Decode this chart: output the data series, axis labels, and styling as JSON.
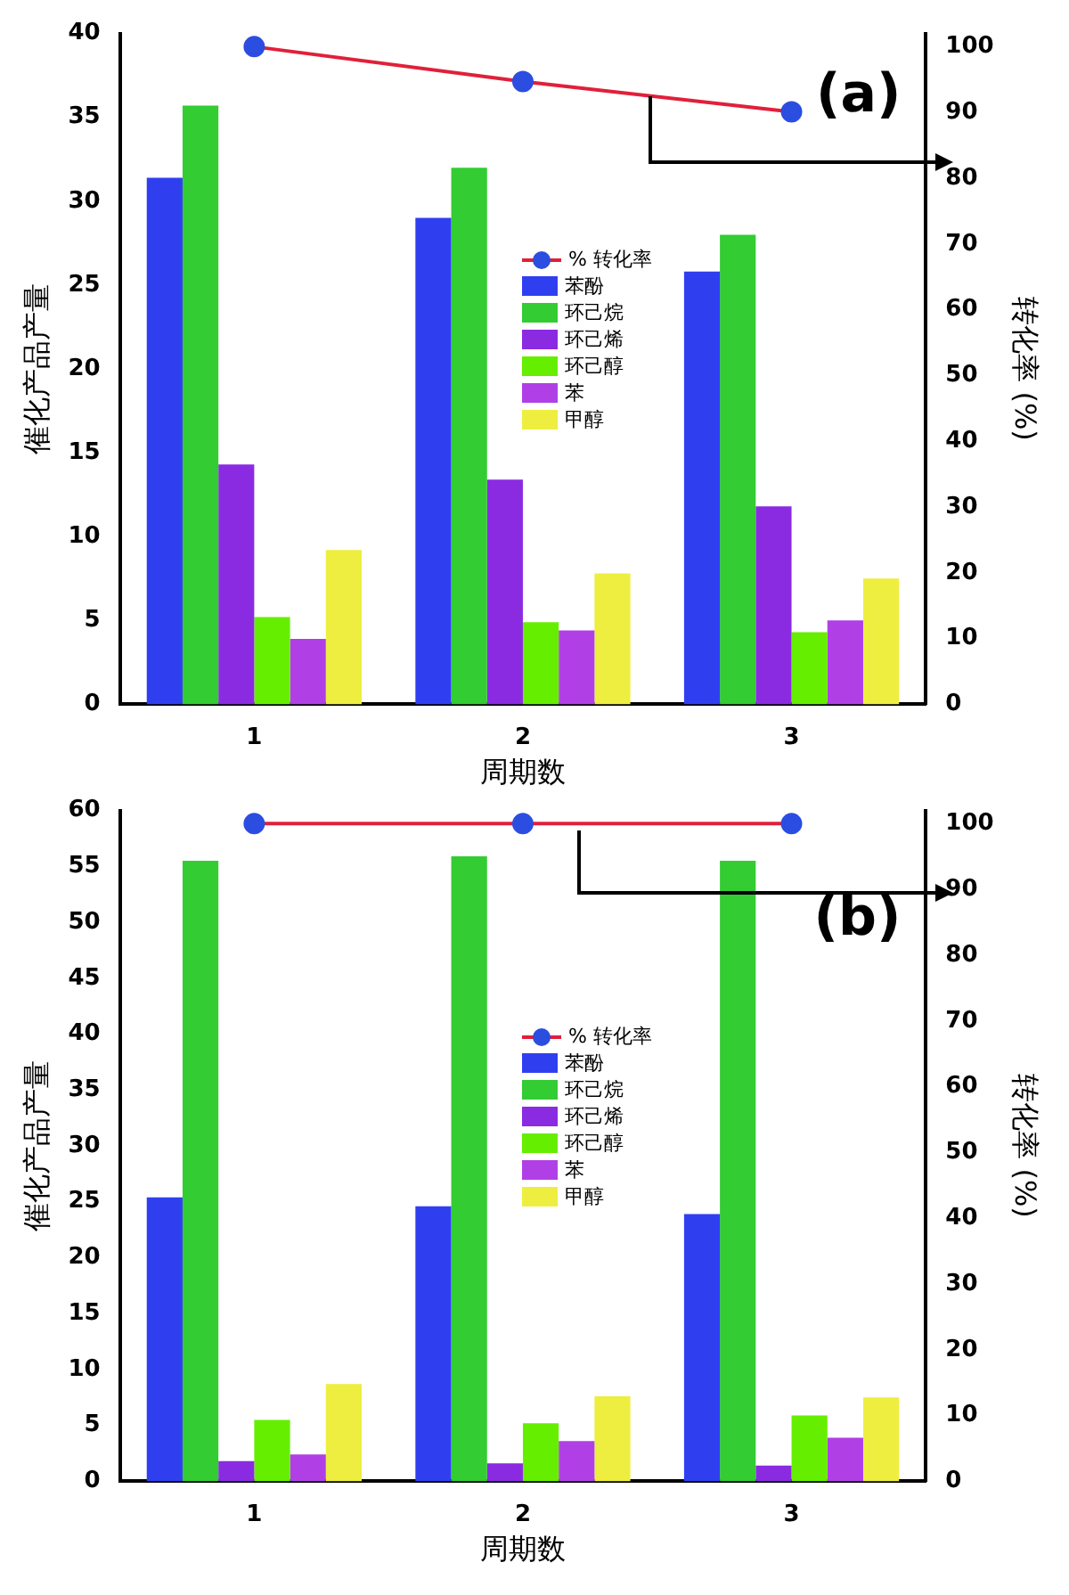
{
  "chart_data": [
    {
      "type": "bar",
      "categories": [
        "1",
        "2",
        "3"
      ],
      "xlabel": "周期数",
      "ylabel": "催化产品产量",
      "y2label": "转化率 (%)",
      "ylim": [
        0,
        40
      ],
      "yticks": [
        0,
        5,
        10,
        15,
        20,
        25,
        30,
        35,
        40
      ],
      "y2lim": [
        0,
        102
      ],
      "y2ticks": [
        0,
        10,
        20,
        30,
        40,
        50,
        60,
        70,
        80,
        90,
        100
      ],
      "legend": "center",
      "grid": false,
      "annotations": [
        "(a)"
      ],
      "series": [
        {
          "name": "% 转化率",
          "type": "line",
          "axis": "y2",
          "color": "#e0203a",
          "colors": [
            "#2b4de0",
            "#2b4de0",
            "#2b4de0"
          ],
          "marker": "circle",
          "values": [
            100,
            94.7,
            90.1
          ]
        },
        {
          "name": "苯酚",
          "color": "#2f3ff0",
          "values": [
            31.4,
            29,
            25.8
          ]
        },
        {
          "name": "环己烷",
          "color": "#33cc33",
          "values": [
            35.7,
            32,
            28
          ]
        },
        {
          "name": "环己烯",
          "color": "#8a2be2",
          "values": [
            14.3,
            13.4,
            11.8
          ]
        },
        {
          "name": "环己醇",
          "color": "#66ee00",
          "values": [
            5.2,
            4.9,
            4.3
          ]
        },
        {
          "name": "苯",
          "color": "#b040e6",
          "values": [
            3.9,
            4.4,
            5.0
          ]
        },
        {
          "name": "甲醇",
          "color": "#eeee40",
          "values": [
            9.2,
            7.8,
            7.5
          ]
        }
      ]
    },
    {
      "type": "bar",
      "categories": [
        "1",
        "2",
        "3"
      ],
      "xlabel": "周期数",
      "ylabel": "催化产品产量",
      "y2label": "转化率 (%)",
      "ylim": [
        0,
        60
      ],
      "yticks": [
        0,
        5,
        10,
        15,
        20,
        25,
        30,
        35,
        40,
        45,
        50,
        55,
        60
      ],
      "y2lim": [
        0,
        102
      ],
      "y2ticks": [
        0,
        10,
        20,
        30,
        40,
        50,
        60,
        70,
        80,
        90,
        100
      ],
      "legend": "center",
      "grid": false,
      "annotations": [
        "(b)"
      ],
      "series": [
        {
          "name": "% 转化率",
          "type": "line",
          "axis": "y2",
          "color": "#e0203a",
          "colors": [
            "#2b4de0",
            "#2b4de0",
            "#2b4de0"
          ],
          "marker": "circle",
          "values": [
            100,
            100,
            100
          ]
        },
        {
          "name": "苯酚",
          "color": "#2f3ff0",
          "values": [
            25.4,
            24.6,
            23.9
          ]
        },
        {
          "name": "环己烷",
          "color": "#33cc33",
          "values": [
            55.5,
            55.9,
            55.5
          ]
        },
        {
          "name": "环己烯",
          "color": "#8a2be2",
          "values": [
            1.8,
            1.6,
            1.4
          ]
        },
        {
          "name": "环己醇",
          "color": "#66ee00",
          "values": [
            5.5,
            5.2,
            5.9
          ]
        },
        {
          "name": "苯",
          "color": "#b040e6",
          "values": [
            2.4,
            3.6,
            3.9
          ]
        },
        {
          "name": "甲醇",
          "color": "#eeee40",
          "values": [
            8.7,
            7.6,
            7.5
          ]
        }
      ]
    }
  ]
}
